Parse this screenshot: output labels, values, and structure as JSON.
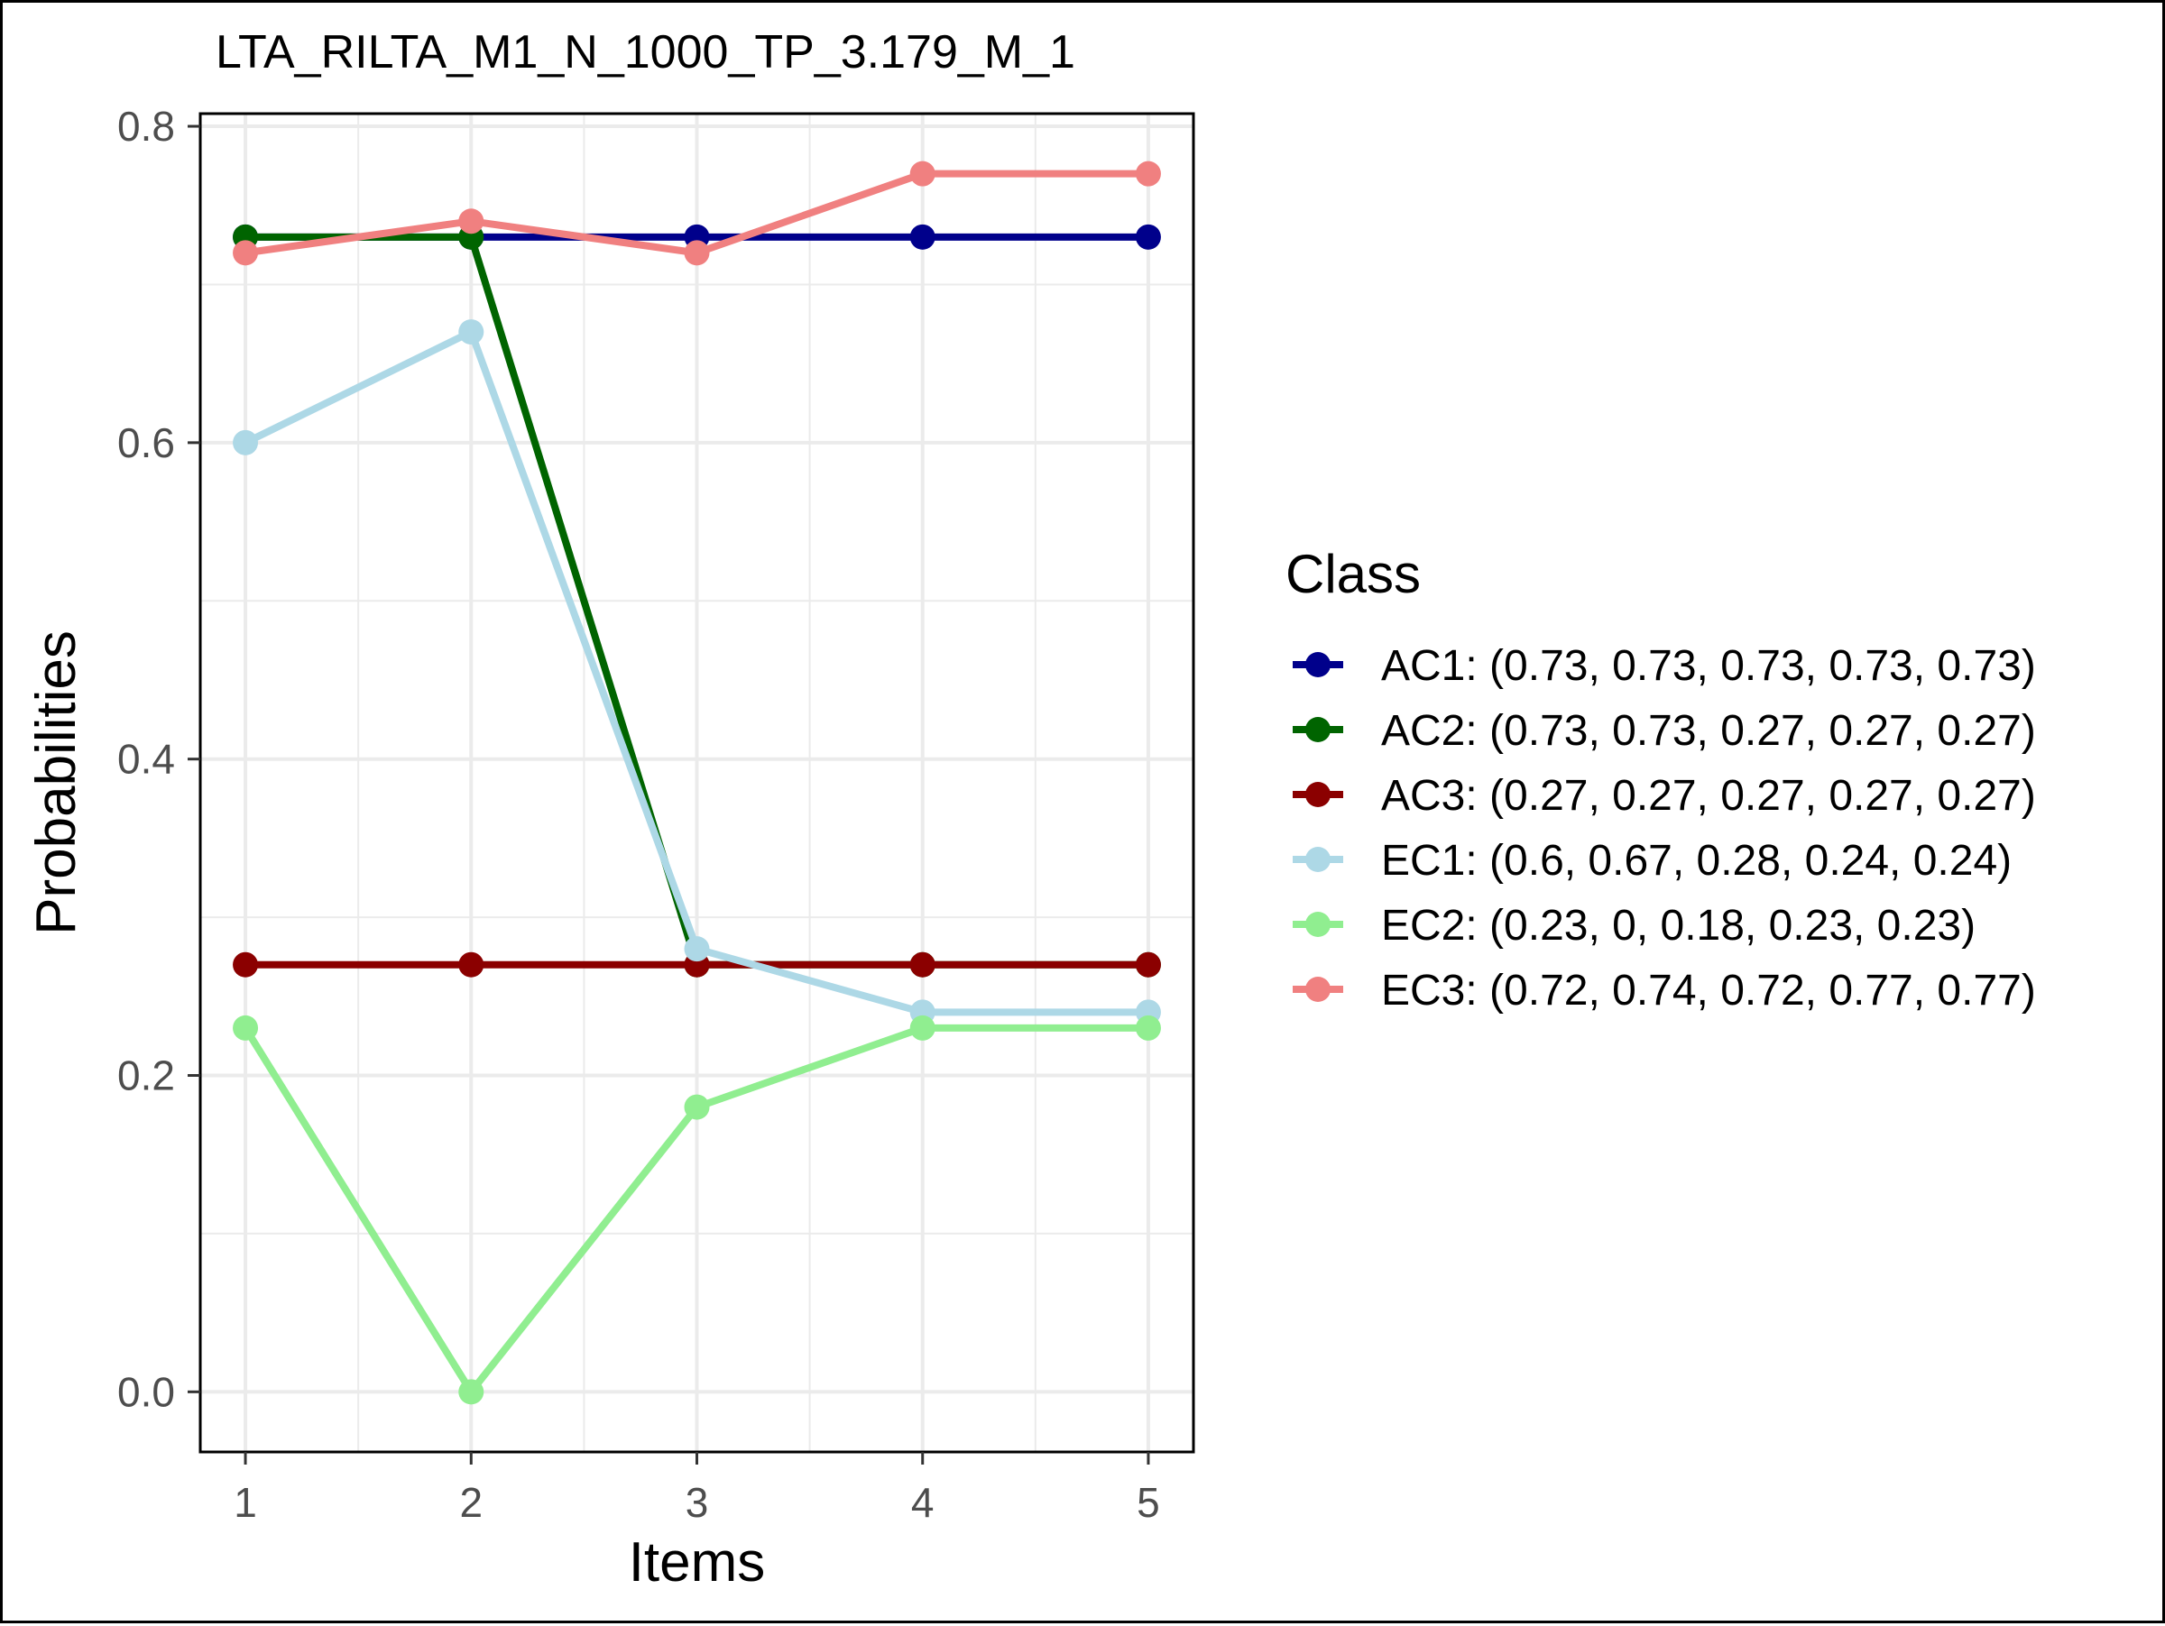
{
  "chart_data": {
    "type": "line",
    "title": "LTA_RILTA_M1_N_1000_TP_3.179_M_1",
    "xlabel": "Items",
    "ylabel": "Probabilities",
    "x": [
      1,
      2,
      3,
      4,
      5
    ],
    "x_tick_labels": [
      "1",
      "2",
      "3",
      "4",
      "5"
    ],
    "y_tick_labels": [
      "0.0",
      "0.2",
      "0.4",
      "0.6",
      "0.8"
    ],
    "y_ticks": [
      0.0,
      0.2,
      0.4,
      0.6,
      0.8
    ],
    "xlim": [
      0.8,
      5.2
    ],
    "ylim": [
      -0.038,
      0.808
    ],
    "grid": true,
    "legend": {
      "title": "Class",
      "placement": "right"
    },
    "series": [
      {
        "name": "AC1",
        "label": "AC1: (0.73, 0.73, 0.73, 0.73, 0.73)",
        "color": "#00008b",
        "values": [
          0.73,
          0.73,
          0.73,
          0.73,
          0.73
        ]
      },
      {
        "name": "AC2",
        "label": "AC2: (0.73, 0.73, 0.27, 0.27, 0.27)",
        "color": "#006400",
        "values": [
          0.73,
          0.73,
          0.27,
          0.27,
          0.27
        ]
      },
      {
        "name": "AC3",
        "label": "AC3: (0.27, 0.27, 0.27, 0.27, 0.27)",
        "color": "#8b0000",
        "values": [
          0.27,
          0.27,
          0.27,
          0.27,
          0.27
        ]
      },
      {
        "name": "EC1",
        "label": "EC1: (0.6, 0.67, 0.28, 0.24, 0.24)",
        "color": "#add8e6",
        "values": [
          0.6,
          0.67,
          0.28,
          0.24,
          0.24
        ]
      },
      {
        "name": "EC2",
        "label": "EC2: (0.23, 0, 0.18, 0.23, 0.23)",
        "color": "#90ee90",
        "values": [
          0.23,
          0.0,
          0.18,
          0.23,
          0.23
        ]
      },
      {
        "name": "EC3",
        "label": "EC3: (0.72, 0.74, 0.72, 0.77, 0.77)",
        "color": "#f08080",
        "values": [
          0.72,
          0.74,
          0.72,
          0.77,
          0.77
        ]
      }
    ]
  }
}
